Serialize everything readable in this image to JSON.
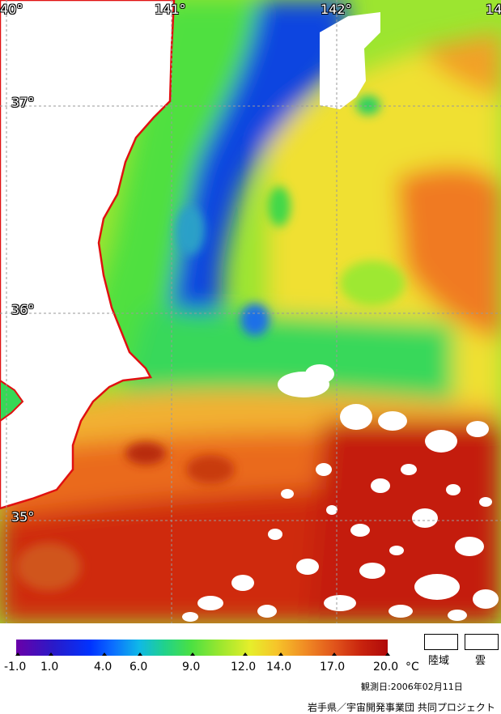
{
  "map": {
    "longitude_labels": [
      "40°",
      "141°",
      "142°",
      "14"
    ],
    "latitude_labels": [
      "37°",
      "36°",
      "35°"
    ],
    "colors": {
      "land": "#ffffff",
      "coastline": "#e01010",
      "grid": "#9a9a9a",
      "cold_water": "#0a3ad8",
      "cool_water": "#25d060",
      "mild_water": "#8ee830",
      "warm_water": "#f0e030",
      "hot_water": "#f07820",
      "very_hot_water": "#c81a0a"
    }
  },
  "legend": {
    "tick_values": [
      "-1.0",
      "1.0",
      "4.0",
      "6.0",
      "9.0",
      "12.0",
      "14.0",
      "17.0",
      "20.0"
    ],
    "unit": "°C",
    "land_label": "陸域",
    "cloud_label": "雲",
    "observation_date": "観測日:2006年02月11日",
    "credit": "岩手県／宇宙開発事業団  共同プロジェクト"
  }
}
